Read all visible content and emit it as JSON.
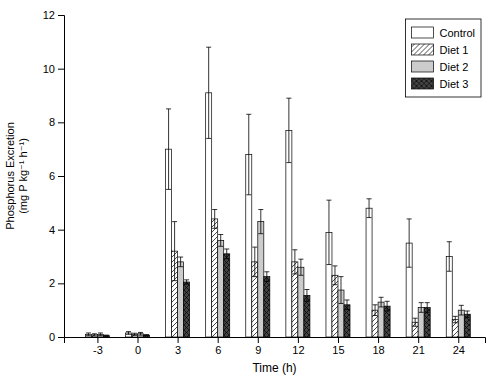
{
  "chart_data": {
    "type": "bar",
    "xlabel": "Time (h)",
    "ylabel": "Phosphorus Excretion\n(mg P kg⁻¹ h⁻¹)",
    "x": [
      -3,
      0,
      3,
      6,
      9,
      12,
      15,
      18,
      21,
      24
    ],
    "xlim": [
      -5.5,
      26.0
    ],
    "xticks": [
      -3,
      0,
      3,
      6,
      9,
      12,
      15,
      18,
      21,
      24
    ],
    "ylim": [
      0,
      12
    ],
    "yticks": [
      0,
      2,
      4,
      6,
      8,
      10,
      12
    ],
    "grid": false,
    "legend": "upper right",
    "series": [
      {
        "name": "Control",
        "color": "white",
        "values": [
          0.1,
          0.15,
          7.0,
          9.1,
          6.8,
          7.7,
          3.9,
          4.8,
          3.5,
          3.0
        ],
        "errors": [
          0.05,
          0.05,
          1.5,
          1.7,
          1.5,
          1.2,
          1.2,
          0.35,
          0.9,
          0.55
        ]
      },
      {
        "name": "Diet 1",
        "color": "white",
        "values": [
          0.08,
          0.1,
          3.2,
          4.4,
          2.8,
          2.8,
          2.3,
          1.0,
          0.55,
          0.65
        ],
        "errors": [
          0.04,
          0.04,
          1.1,
          0.35,
          0.55,
          0.45,
          0.35,
          0.2,
          0.15,
          0.12
        ]
      },
      {
        "name": "Diet 2",
        "color": "#cccccc",
        "values": [
          0.1,
          0.12,
          2.8,
          3.6,
          4.3,
          2.6,
          1.75,
          1.3,
          1.1,
          1.0
        ],
        "errors": [
          0.05,
          0.05,
          0.18,
          0.22,
          0.45,
          0.3,
          0.5,
          0.18,
          0.18,
          0.18
        ]
      },
      {
        "name": "Diet 3",
        "color": "#444444",
        "values": [
          0.05,
          0.07,
          2.05,
          3.1,
          2.25,
          1.55,
          1.2,
          1.15,
          1.1,
          0.85
        ],
        "errors": [
          0.02,
          0.02,
          0.08,
          0.18,
          0.18,
          0.22,
          0.18,
          0.18,
          0.18,
          0.12
        ]
      }
    ]
  }
}
